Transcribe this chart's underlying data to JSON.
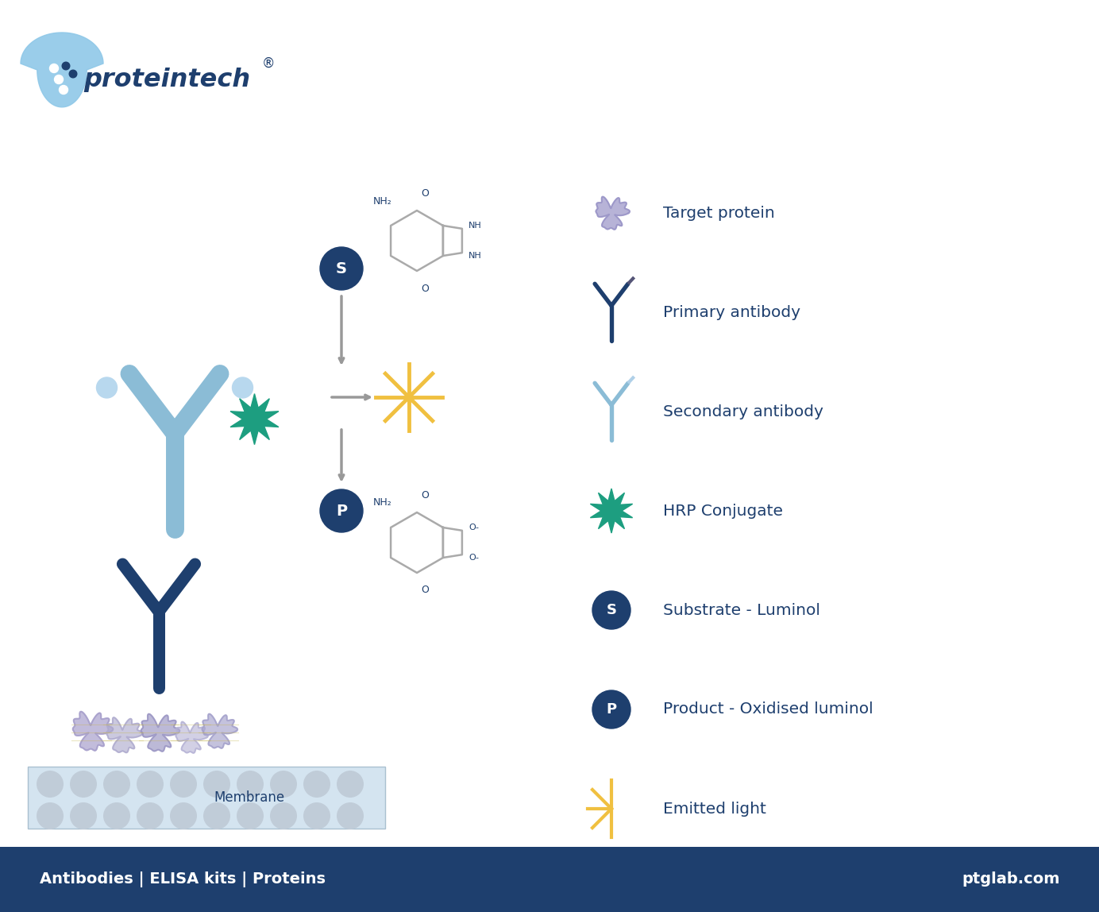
{
  "bg_color": "#ffffff",
  "footer_color": "#1e4068",
  "footer_text_left": "Antibodies | ELISA kits | Proteins",
  "footer_text_right": "ptglab.com",
  "colors": {
    "dark_blue": "#1e3f6e",
    "light_blue": "#8bbcd6",
    "lighter_blue": "#b0d0e8",
    "teal": "#1d9e80",
    "yellow": "#f0c040",
    "purple": "#9b96c8",
    "light_purple": "#c0bcdc",
    "gray_struct": "#aaaaaa",
    "mem_fill": "#d4e4f0",
    "mem_circle": "#c0ccd8",
    "white": "#ffffff",
    "arrow_gray": "#999999"
  },
  "legend": [
    {
      "icon": "protein",
      "label": "Target protein",
      "iy": 8.8
    },
    {
      "icon": "primary",
      "label": "Primary antibody",
      "iy": 7.55
    },
    {
      "icon": "secondary",
      "label": "Secondary antibody",
      "iy": 6.3
    },
    {
      "icon": "hrp",
      "label": "HRP Conjugate",
      "iy": 5.05
    },
    {
      "icon": "S",
      "label": "Substrate - Luminol",
      "iy": 3.8
    },
    {
      "icon": "P",
      "label": "Product - Oxidised luminol",
      "iy": 2.55
    },
    {
      "icon": "light",
      "label": "Emitted light",
      "iy": 1.3
    }
  ]
}
